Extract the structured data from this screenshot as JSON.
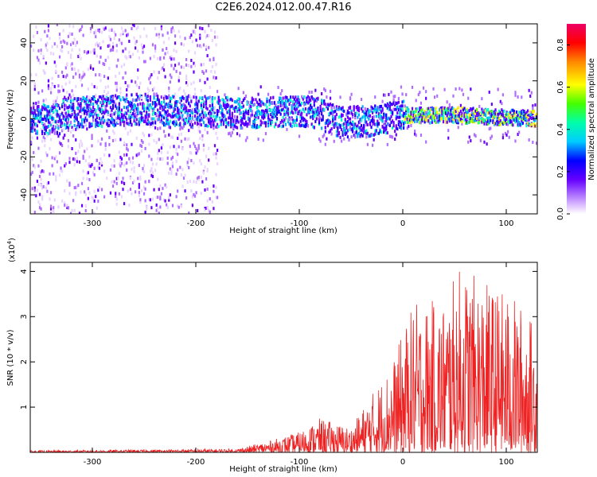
{
  "title": "C2E6.2024.012.00.47.R16",
  "chart_data": [
    {
      "type": "heatmap",
      "xlabel": "Height of straight line (km)",
      "ylabel": "Frequency (Hz)",
      "xlim": [
        -360,
        130
      ],
      "ylim": [
        -50,
        50
      ],
      "xticks": [
        -300,
        -200,
        -100,
        0,
        100
      ],
      "yticks": [
        -40,
        -20,
        0,
        20,
        40
      ],
      "colorbar": {
        "label": "Normalized spectral amplitude",
        "range": [
          0.0,
          0.9
        ],
        "ticks": [
          "0.0",
          "0.2",
          "0.4",
          "0.6",
          "0.8"
        ]
      },
      "band_center_hz": [
        {
          "x": -330,
          "y": 3
        },
        {
          "x": -250,
          "y": 5
        },
        {
          "x": -150,
          "y": 3
        },
        {
          "x": -90,
          "y": 4
        },
        {
          "x": -60,
          "y": -2
        },
        {
          "x": -30,
          "y": -1
        },
        {
          "x": 0,
          "y": 2
        },
        {
          "x": 50,
          "y": 2
        },
        {
          "x": 130,
          "y": 0
        }
      ]
    },
    {
      "type": "line",
      "xlabel": "Height of straight line (km)",
      "ylabel": "SNR (10 * v/v)",
      "y_multiplier": "(x10",
      "y_multiplier_exp": "4",
      "y_multiplier_close": ")",
      "xlim": [
        -360,
        130
      ],
      "ylim": [
        0,
        4.2
      ],
      "xticks": [
        -300,
        -200,
        -100,
        0,
        100
      ],
      "yticks": [
        1,
        2,
        3,
        4
      ],
      "series": [
        {
          "color": "#ee2222",
          "envelope": [
            {
              "x": -360,
              "y": 0.04
            },
            {
              "x": -250,
              "y": 0.06
            },
            {
              "x": -160,
              "y": 0.08
            },
            {
              "x": -130,
              "y": 0.25
            },
            {
              "x": -100,
              "y": 0.45
            },
            {
              "x": -80,
              "y": 0.75
            },
            {
              "x": -50,
              "y": 0.55
            },
            {
              "x": -30,
              "y": 1.3
            },
            {
              "x": -10,
              "y": 2.0
            },
            {
              "x": 10,
              "y": 3.3
            },
            {
              "x": 40,
              "y": 3.4
            },
            {
              "x": 55,
              "y": 4.1
            },
            {
              "x": 85,
              "y": 3.7
            },
            {
              "x": 110,
              "y": 3.4
            },
            {
              "x": 130,
              "y": 2.8
            }
          ]
        }
      ]
    }
  ]
}
